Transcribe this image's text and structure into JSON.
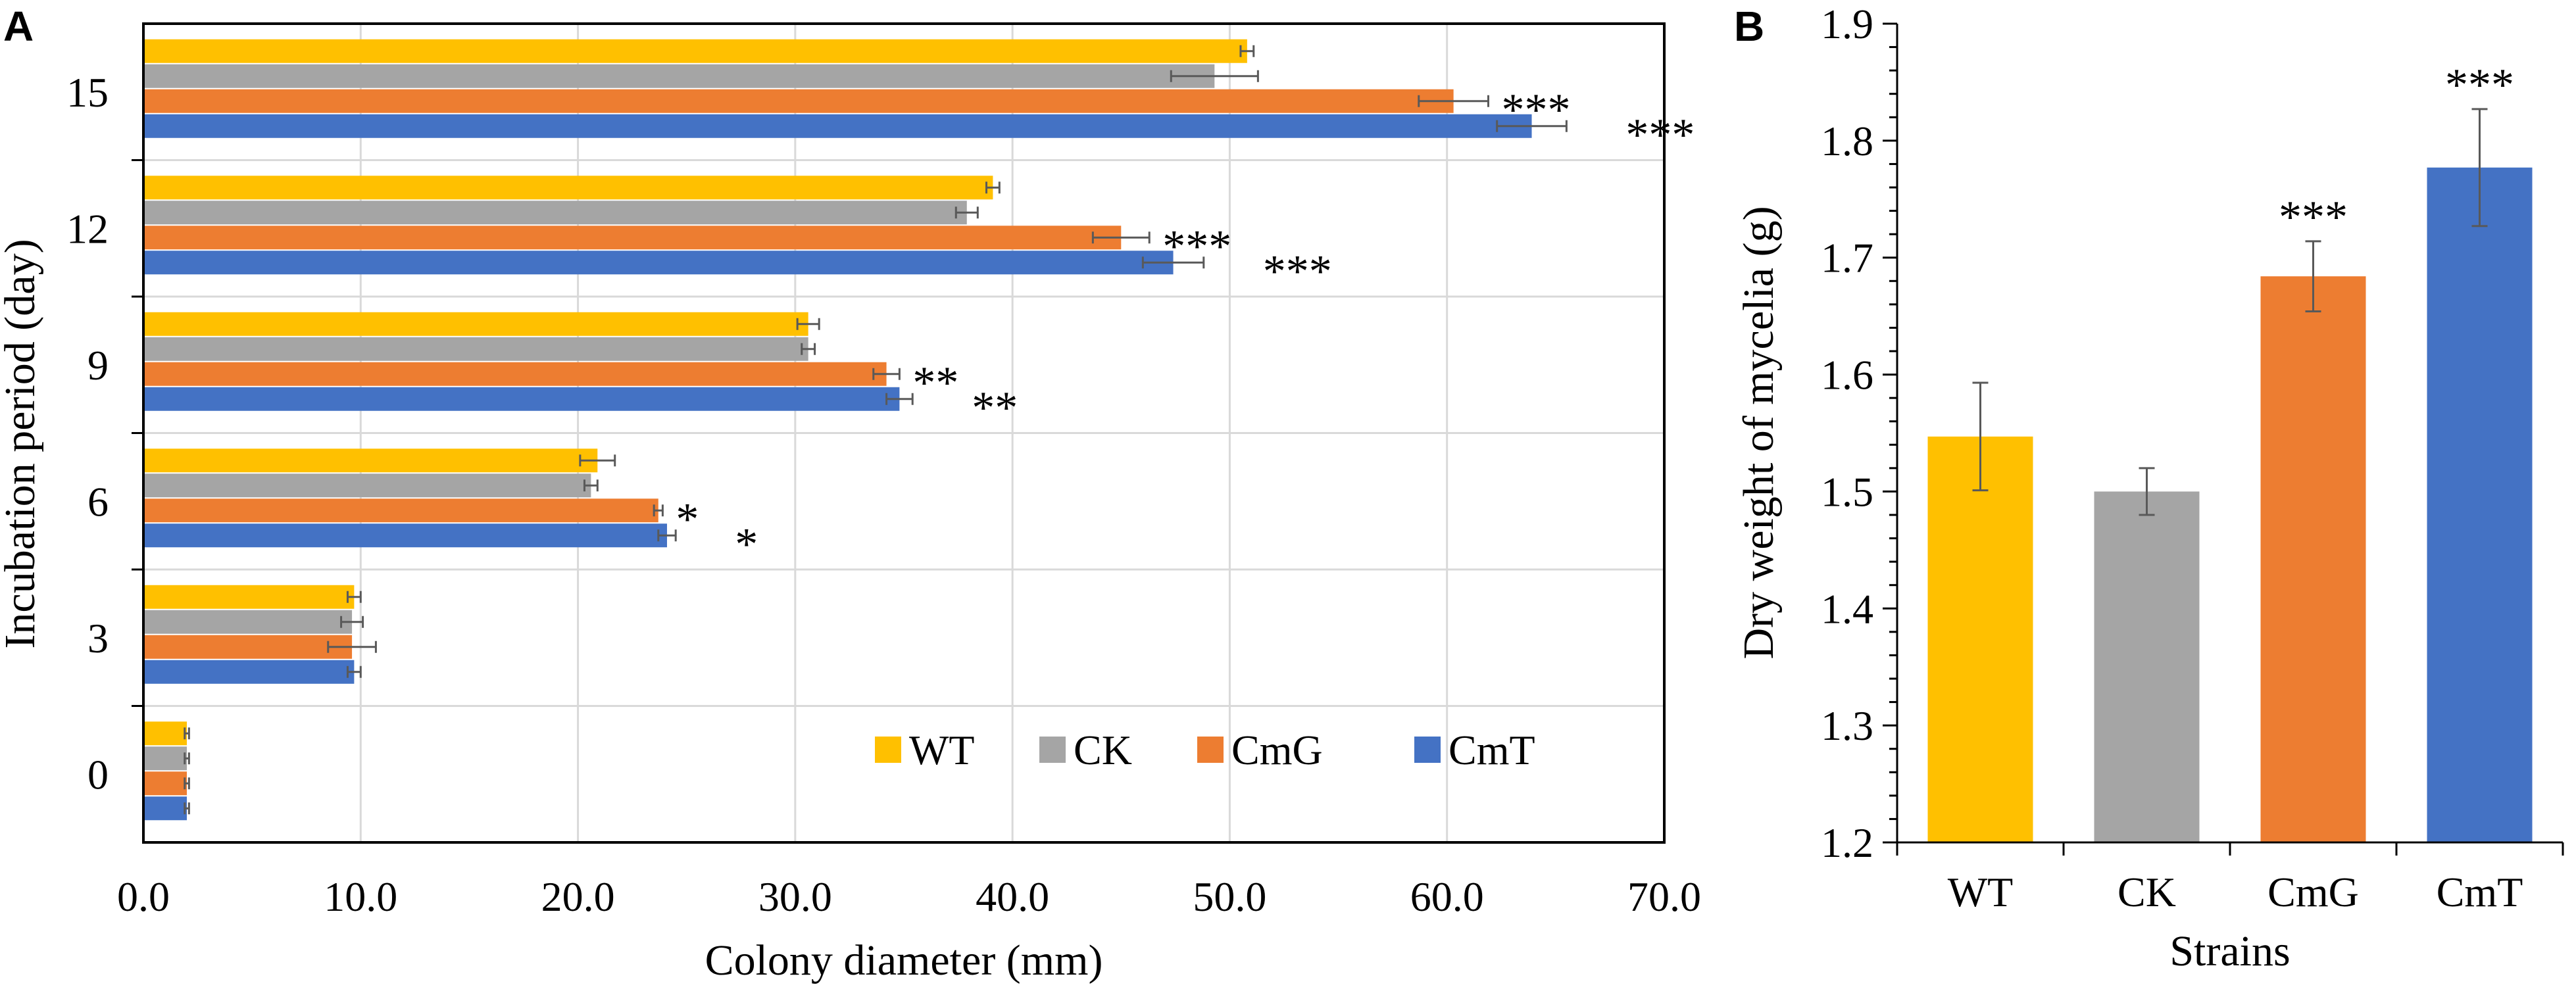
{
  "colors": {
    "WT": "#FFC000",
    "CK": "#A5A5A5",
    "CmG": "#ED7D31",
    "CmT": "#4472C4",
    "grid": "#D9D9D9",
    "axis": "#000000",
    "error_bar": "#595959"
  },
  "chart_data": [
    {
      "panel": "A",
      "type": "bar",
      "orientation": "horizontal",
      "title": "",
      "xlabel": "Colony diameter (mm)",
      "ylabel": "Incubation period (day)",
      "xlim": [
        0,
        70
      ],
      "x_ticks": [
        "0.0",
        "10.0",
        "20.0",
        "30.0",
        "40.0",
        "50.0",
        "60.0",
        "70.0"
      ],
      "grid": true,
      "legend_position": "bottom-right",
      "categories": [
        "15",
        "12",
        "9",
        "6",
        "3",
        "0"
      ],
      "series": [
        {
          "name": "WT",
          "values": [
            50.8,
            39.1,
            30.6,
            20.9,
            9.7,
            2.0
          ],
          "errors": [
            0.3,
            0.3,
            0.5,
            0.8,
            0.3,
            0.1
          ]
        },
        {
          "name": "CK",
          "values": [
            49.3,
            37.9,
            30.6,
            20.6,
            9.6,
            2.0
          ],
          "errors": [
            2.0,
            0.5,
            0.3,
            0.3,
            0.5,
            0.1
          ]
        },
        {
          "name": "CmG",
          "values": [
            60.3,
            45.0,
            34.2,
            23.7,
            9.6,
            2.0
          ],
          "errors": [
            1.6,
            1.3,
            0.6,
            0.2,
            1.1,
            0.1
          ]
        },
        {
          "name": "CmT",
          "values": [
            63.9,
            47.4,
            34.8,
            24.1,
            9.7,
            2.0
          ],
          "errors": [
            1.6,
            1.4,
            0.6,
            0.4,
            0.3,
            0.1
          ]
        }
      ],
      "annotations": [
        {
          "category": "15",
          "series": "CmG",
          "label": "***"
        },
        {
          "category": "15",
          "series": "CmT",
          "label": "***"
        },
        {
          "category": "12",
          "series": "CmG",
          "label": "***"
        },
        {
          "category": "12",
          "series": "CmT",
          "label": "***"
        },
        {
          "category": "9",
          "series": "CmG",
          "label": "**"
        },
        {
          "category": "9",
          "series": "CmT",
          "label": "**"
        },
        {
          "category": "6",
          "series": "CmG",
          "label": "*"
        },
        {
          "category": "6",
          "series": "CmT",
          "label": "*"
        }
      ]
    },
    {
      "panel": "B",
      "type": "bar",
      "orientation": "vertical",
      "title": "",
      "xlabel": "Strains",
      "ylabel": "Dry weight of mycelia (g)",
      "ylim": [
        1.2,
        1.9
      ],
      "y_ticks": [
        "1.2",
        "1.3",
        "1.4",
        "1.5",
        "1.6",
        "1.7",
        "1.8",
        "1.9"
      ],
      "grid": false,
      "categories": [
        "WT",
        "CK",
        "CmG",
        "CmT"
      ],
      "values": [
        1.547,
        1.5,
        1.684,
        1.777
      ],
      "errors": [
        0.046,
        0.02,
        0.03,
        0.05
      ],
      "annotations": [
        "",
        "",
        "***",
        "***"
      ]
    }
  ]
}
